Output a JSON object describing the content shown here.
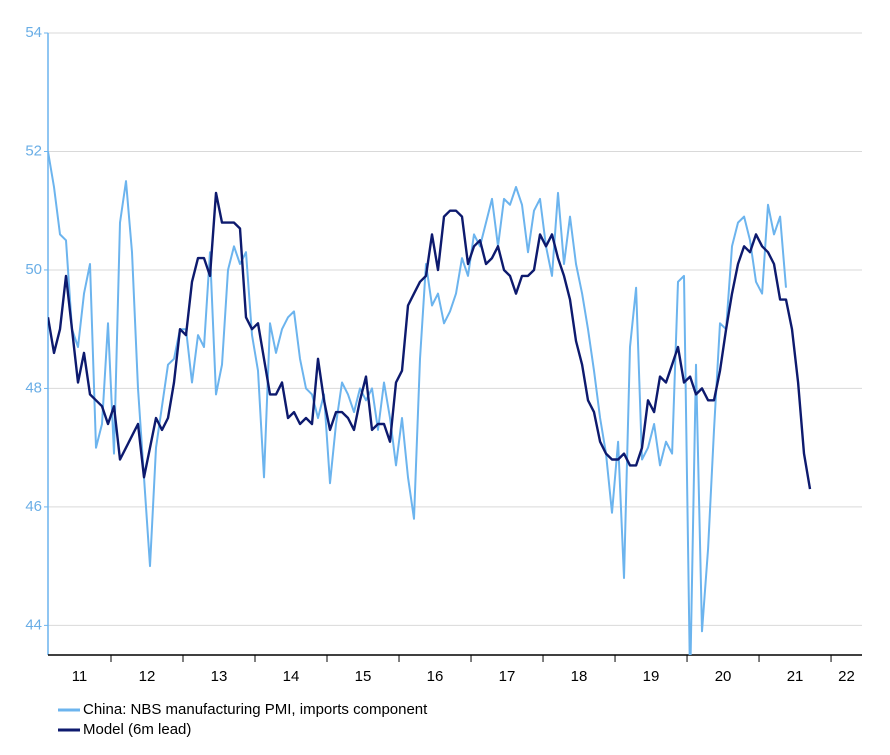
{
  "chart_data": {
    "type": "line",
    "x": [
      2011.125,
      2011.208,
      2011.292,
      2011.375,
      2011.458,
      2011.542,
      2011.625,
      2011.708,
      2011.792,
      2011.875,
      2011.958,
      2012.042,
      2012.125,
      2012.208,
      2012.292,
      2012.375,
      2012.458,
      2012.542,
      2012.625,
      2012.708,
      2012.792,
      2012.875,
      2012.958,
      2013.042,
      2013.125,
      2013.208,
      2013.292,
      2013.375,
      2013.458,
      2013.542,
      2013.625,
      2013.708,
      2013.792,
      2013.875,
      2013.958,
      2014.042,
      2014.125,
      2014.208,
      2014.292,
      2014.375,
      2014.458,
      2014.542,
      2014.625,
      2014.708,
      2014.792,
      2014.875,
      2014.958,
      2015.042,
      2015.125,
      2015.208,
      2015.292,
      2015.375,
      2015.458,
      2015.542,
      2015.625,
      2015.708,
      2015.792,
      2015.875,
      2015.958,
      2016.042,
      2016.125,
      2016.208,
      2016.292,
      2016.375,
      2016.458,
      2016.542,
      2016.625,
      2016.708,
      2016.792,
      2016.875,
      2016.958,
      2017.042,
      2017.125,
      2017.208,
      2017.292,
      2017.375,
      2017.458,
      2017.542,
      2017.625,
      2017.708,
      2017.792,
      2017.875,
      2017.958,
      2018.042,
      2018.125,
      2018.208,
      2018.292,
      2018.375,
      2018.458,
      2018.542,
      2018.625,
      2018.708,
      2018.792,
      2018.875,
      2018.958,
      2019.042,
      2019.125,
      2019.208,
      2019.292,
      2019.375,
      2019.458,
      2019.542,
      2019.625,
      2019.708,
      2019.792,
      2019.875,
      2019.958,
      2020.042,
      2020.125,
      2020.208,
      2020.292,
      2020.375,
      2020.458,
      2020.542,
      2020.625,
      2020.708,
      2020.792,
      2020.875,
      2020.958,
      2021.042,
      2021.125,
      2021.208,
      2021.292,
      2021.375,
      2021.458,
      2021.542,
      2021.625,
      2021.708
    ],
    "series": [
      {
        "name": "China: NBS manufacturing PMI, imports component",
        "color": "#6cb4ee",
        "values": [
          52.0,
          51.4,
          50.6,
          50.5,
          49.0,
          48.7,
          49.6,
          50.1,
          47.0,
          47.4,
          49.1,
          46.9,
          50.8,
          51.5,
          50.3,
          48.0,
          46.5,
          45.0,
          47.0,
          47.7,
          48.4,
          48.5,
          49.0,
          49.0,
          48.1,
          48.9,
          48.7,
          50.3,
          47.9,
          48.4,
          50.0,
          50.4,
          50.1,
          50.3,
          48.9,
          48.3,
          46.5,
          49.1,
          48.6,
          49.0,
          49.2,
          49.3,
          48.5,
          48.0,
          47.9,
          47.5,
          47.9,
          46.4,
          47.4,
          48.1,
          47.9,
          47.6,
          48.0,
          47.8,
          48.0,
          47.3,
          48.1,
          47.5,
          46.7,
          47.5,
          46.5,
          45.8,
          48.5,
          50.1,
          49.4,
          49.6,
          49.1,
          49.3,
          49.6,
          50.2,
          49.9,
          50.6,
          50.4,
          50.8,
          51.2,
          50.4,
          51.2,
          51.1,
          51.4,
          51.1,
          50.3,
          51.0,
          51.2,
          50.4,
          49.9,
          51.3,
          50.1,
          50.9,
          50.1,
          49.6,
          49.0,
          48.3,
          47.5,
          46.9,
          45.9,
          47.1,
          44.8,
          48.7,
          49.7,
          46.8,
          47.0,
          47.4,
          46.7,
          47.1,
          46.9,
          49.8,
          49.9,
          43.0,
          48.4,
          43.9,
          45.3,
          47.3,
          49.1,
          49.0,
          50.4,
          50.8,
          50.9,
          50.5,
          49.8,
          49.6,
          51.1,
          50.6,
          50.9,
          49.7,
          null,
          null,
          null,
          null
        ]
      },
      {
        "name": "Model (6m lead)",
        "color": "#0d1a6e",
        "values": [
          49.2,
          48.6,
          49.0,
          49.9,
          49.0,
          48.1,
          48.6,
          47.9,
          47.8,
          47.7,
          47.4,
          47.7,
          46.8,
          47.0,
          47.2,
          47.4,
          46.5,
          47.0,
          47.5,
          47.3,
          47.5,
          48.1,
          49.0,
          48.9,
          49.8,
          50.2,
          50.2,
          49.9,
          51.3,
          50.8,
          50.8,
          50.8,
          50.7,
          49.2,
          49.0,
          49.1,
          48.5,
          47.9,
          47.9,
          48.1,
          47.5,
          47.6,
          47.4,
          47.5,
          47.4,
          48.5,
          47.8,
          47.3,
          47.6,
          47.6,
          47.5,
          47.3,
          47.8,
          48.2,
          47.3,
          47.4,
          47.4,
          47.1,
          48.1,
          48.3,
          49.4,
          49.6,
          49.8,
          49.9,
          50.6,
          50.0,
          50.9,
          51.0,
          51.0,
          50.9,
          50.1,
          50.4,
          50.5,
          50.1,
          50.2,
          50.4,
          50.0,
          49.9,
          49.6,
          49.9,
          49.9,
          50.0,
          50.6,
          50.4,
          50.6,
          50.2,
          49.9,
          49.5,
          48.8,
          48.4,
          47.8,
          47.6,
          47.1,
          46.9,
          46.8,
          46.8,
          46.9,
          46.7,
          46.7,
          47.0,
          47.8,
          47.6,
          48.2,
          48.1,
          48.4,
          48.7,
          48.1,
          48.2,
          47.9,
          48.0,
          47.8,
          47.8,
          48.3,
          49.0,
          49.6,
          50.1,
          50.4,
          50.3,
          50.6,
          50.4,
          50.3,
          50.1,
          49.5,
          49.5,
          49.0,
          48.1,
          46.9,
          46.3
        ]
      }
    ],
    "xlim": [
      2011.125,
      2022.43
    ],
    "xticks": [
      {
        "value": 2011,
        "label": "11"
      },
      {
        "value": 2012,
        "label": "12"
      },
      {
        "value": 2013,
        "label": "13"
      },
      {
        "value": 2014,
        "label": "14"
      },
      {
        "value": 2015,
        "label": "15"
      },
      {
        "value": 2016,
        "label": "16"
      },
      {
        "value": 2017,
        "label": "17"
      },
      {
        "value": 2018,
        "label": "18"
      },
      {
        "value": 2019,
        "label": "19"
      },
      {
        "value": 2020,
        "label": "20"
      },
      {
        "value": 2021,
        "label": "21"
      },
      {
        "value": 2022,
        "label": "22"
      }
    ],
    "ylim": [
      43.5,
      54
    ],
    "yticks": [
      44,
      46,
      48,
      50,
      52,
      54
    ],
    "grid": true
  }
}
